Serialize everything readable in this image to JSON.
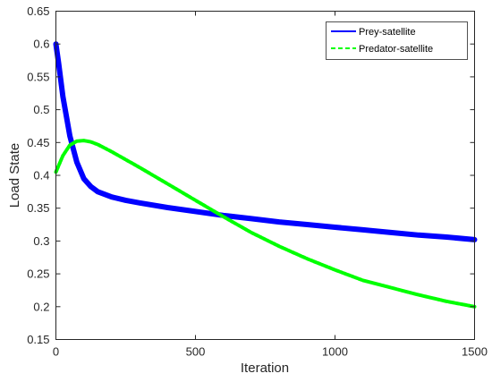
{
  "chart_data": {
    "type": "line",
    "title": "",
    "xlabel": "Iteration",
    "ylabel": "Load State",
    "xlim": [
      0,
      1500
    ],
    "ylim": [
      0.15,
      0.65
    ],
    "xticks": [
      0,
      500,
      1000,
      1500
    ],
    "xtick_labels": [
      "0",
      "500",
      "1000",
      "1500"
    ],
    "yticks": [
      0.15,
      0.2,
      0.25,
      0.3,
      0.35,
      0.4,
      0.45,
      0.5,
      0.55,
      0.6,
      0.65
    ],
    "ytick_labels": [
      "0.15",
      "0.2",
      "0.25",
      "0.3",
      "0.35",
      "0.4",
      "0.45",
      "0.5",
      "0.55",
      "0.6",
      "0.65"
    ],
    "grid": false,
    "legend_position": "top-right",
    "series": [
      {
        "name": "Prey-satellite",
        "color": "#0000ff",
        "line_style": "solid",
        "x": [
          0,
          10,
          25,
          50,
          75,
          100,
          125,
          150,
          200,
          250,
          300,
          400,
          500,
          600,
          700,
          800,
          900,
          1000,
          1100,
          1200,
          1300,
          1400,
          1500
        ],
        "y": [
          0.6,
          0.57,
          0.52,
          0.46,
          0.42,
          0.395,
          0.383,
          0.375,
          0.367,
          0.362,
          0.358,
          0.351,
          0.345,
          0.339,
          0.334,
          0.329,
          0.325,
          0.321,
          0.317,
          0.313,
          0.309,
          0.306,
          0.302
        ]
      },
      {
        "name": "Predator-satellite",
        "color": "#00ff00",
        "line_style": "dashed",
        "x": [
          0,
          25,
          50,
          75,
          100,
          125,
          150,
          200,
          250,
          300,
          400,
          500,
          600,
          700,
          800,
          900,
          1000,
          1100,
          1200,
          1300,
          1400,
          1500
        ],
        "y": [
          0.405,
          0.43,
          0.446,
          0.452,
          0.453,
          0.451,
          0.447,
          0.436,
          0.424,
          0.412,
          0.387,
          0.362,
          0.337,
          0.313,
          0.292,
          0.273,
          0.256,
          0.24,
          0.229,
          0.218,
          0.208,
          0.2
        ]
      }
    ]
  }
}
